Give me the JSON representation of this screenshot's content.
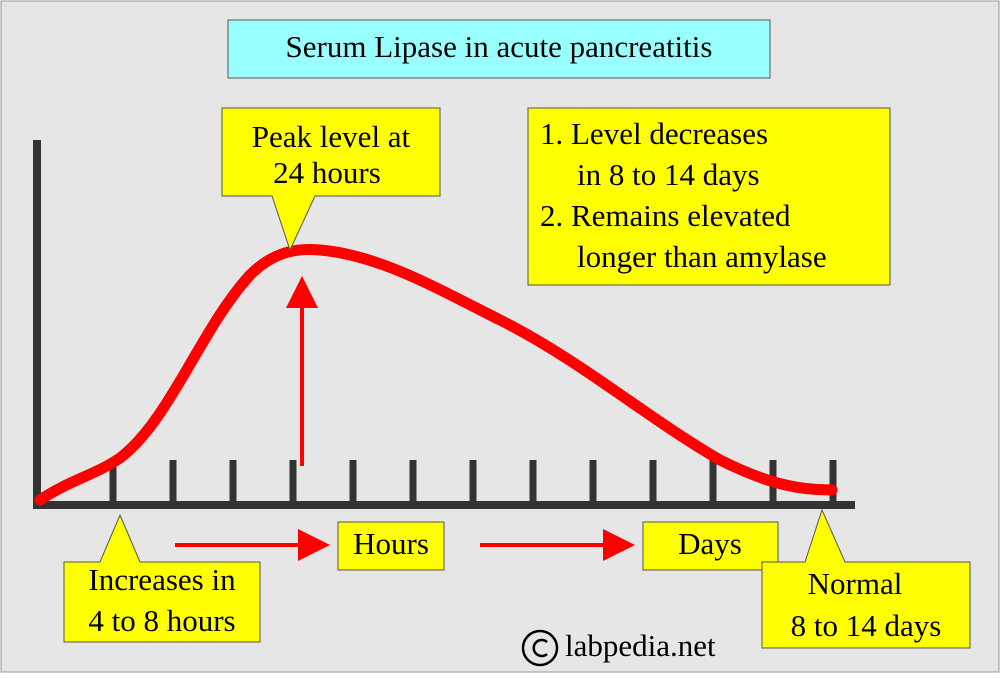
{
  "title": "Serum Lipase in acute pancreatitis",
  "peak_callout": {
    "lines": [
      "Peak level at",
      "24 hours"
    ]
  },
  "notes": {
    "lines": [
      "1. Level decreases",
      "in 8 to 14 days",
      "2. Remains elevated",
      "longer than amylase"
    ]
  },
  "axis_labels": {
    "hours": "Hours",
    "days": "Days"
  },
  "increase_callout": {
    "lines": [
      "Increases in",
      "4 to 8 hours"
    ]
  },
  "normal_callout": {
    "lines": [
      "Normal",
      "8 to 14 days"
    ]
  },
  "copyright": "labpedia.net"
}
